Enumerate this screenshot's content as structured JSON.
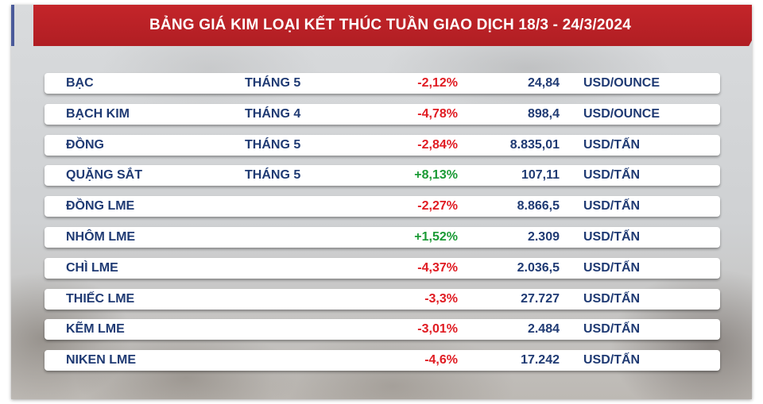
{
  "title": "BẢNG GIÁ KIM LOẠI KẾT THÚC TUẦN GIAO DỊCH 18/3 - 24/3/2024",
  "colors": {
    "header_red": "#c4252a",
    "text_navy": "#1f3a73",
    "negative": "#e01b22",
    "positive": "#1a9a35"
  },
  "rows": [
    {
      "name": "BẠC",
      "month": "THÁNG 5",
      "change": "-2,12%",
      "price": "24,84",
      "unit": "USD/OUNCE",
      "trend": "neg"
    },
    {
      "name": "BẠCH KIM",
      "month": "THÁNG 4",
      "change": "-4,78%",
      "price": "898,4",
      "unit": "USD/OUNCE",
      "trend": "neg"
    },
    {
      "name": "ĐỒNG",
      "month": "THÁNG 5",
      "change": "-2,84%",
      "price": "8.835,01",
      "unit": "USD/TẤN",
      "trend": "neg"
    },
    {
      "name": "QUẶNG SẮT",
      "month": "THÁNG 5",
      "change": "+8,13%",
      "price": "107,11",
      "unit": "USD/TẤN",
      "trend": "pos"
    },
    {
      "name": "ĐỒNG LME",
      "month": "",
      "change": "-2,27%",
      "price": "8.866,5",
      "unit": "USD/TẤN",
      "trend": "neg"
    },
    {
      "name": "NHÔM LME",
      "month": "",
      "change": "+1,52%",
      "price": "2.309",
      "unit": "USD/TẤN",
      "trend": "pos"
    },
    {
      "name": "CHÌ LME",
      "month": "",
      "change": "-4,37%",
      "price": "2.036,5",
      "unit": "USD/TẤN",
      "trend": "neg"
    },
    {
      "name": "THIẾC LME",
      "month": "",
      "change": "-3,3%",
      "price": "27.727",
      "unit": "USD/TẤN",
      "trend": "neg"
    },
    {
      "name": "KẼM LME",
      "month": "",
      "change": "-3,01%",
      "price": "2.484",
      "unit": "USD/TẤN",
      "trend": "neg"
    },
    {
      "name": "NIKEN LME",
      "month": "",
      "change": "-4,6%",
      "price": "17.242",
      "unit": "USD/TẤN",
      "trend": "neg"
    }
  ]
}
